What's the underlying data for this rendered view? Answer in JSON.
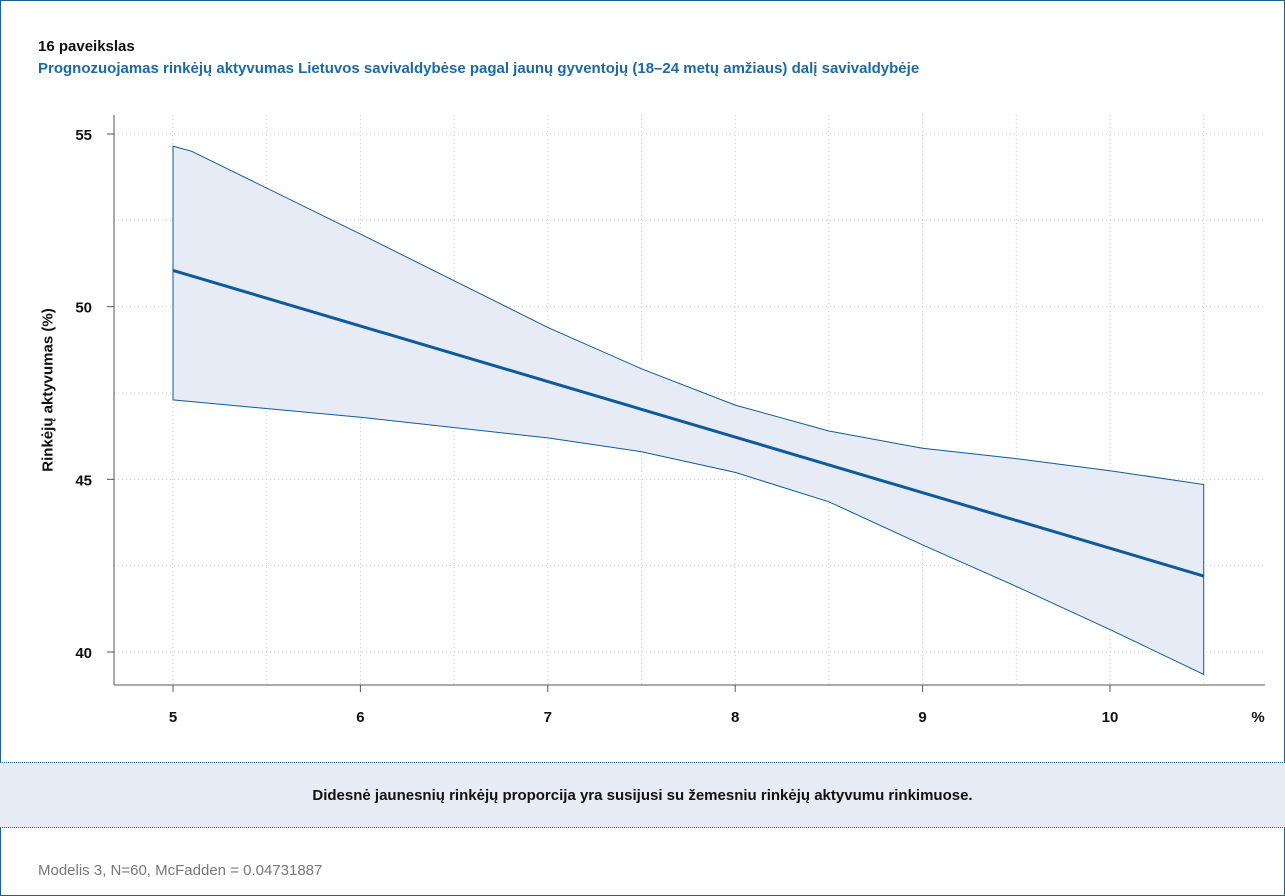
{
  "figure": {
    "label": "16 paveikslas",
    "title": "Prognozuojamas rinkėjų aktyvumas Lietuvos savivaldybėse pagal jaunų gyventojų (18–24 metų amžiaus) dalį savivaldybėje",
    "summary": "Didesnė jaunesnių rinkėjų proporcija yra susijusi su žemesniu rinkėjų aktyvumu rinkimuose.",
    "footnote": "Modelis 3, N=60, McFadden = 0.04731887"
  },
  "chart_data": {
    "type": "line",
    "title": "Prognozuojamas rinkėjų aktyvumas Lietuvos savivaldybėse pagal jaunų gyventojų (18–24 metų amžiaus) dalį savivaldybėje",
    "xlabel": "%",
    "ylabel": "Rinkėjų aktyvumas (%)",
    "xlim": [
      4.7,
      10.9
    ],
    "ylim": [
      39.3,
      55.5
    ],
    "xticks": [
      5,
      6,
      7,
      8,
      9,
      10
    ],
    "yticks": [
      40,
      45,
      50,
      55
    ],
    "grid": true,
    "series": [
      {
        "type": "line",
        "color": "#0f5b99",
        "x": [
          5,
          10.5
        ],
        "y": [
          51.05,
          42.2
        ]
      },
      {
        "type": "area-band",
        "color": "#0f5b99",
        "fill": "#e6ebf6",
        "x": [
          5,
          5.1,
          6,
          7,
          7.5,
          8,
          8.5,
          9,
          9.5,
          10,
          10.5
        ],
        "upper": [
          54.65,
          54.5,
          52.1,
          49.4,
          48.2,
          47.15,
          46.4,
          45.9,
          45.6,
          45.25,
          44.85
        ],
        "lower": [
          47.3,
          47.25,
          46.8,
          46.2,
          45.8,
          45.2,
          44.35,
          43.1,
          41.9,
          40.65,
          39.35
        ]
      }
    ]
  }
}
